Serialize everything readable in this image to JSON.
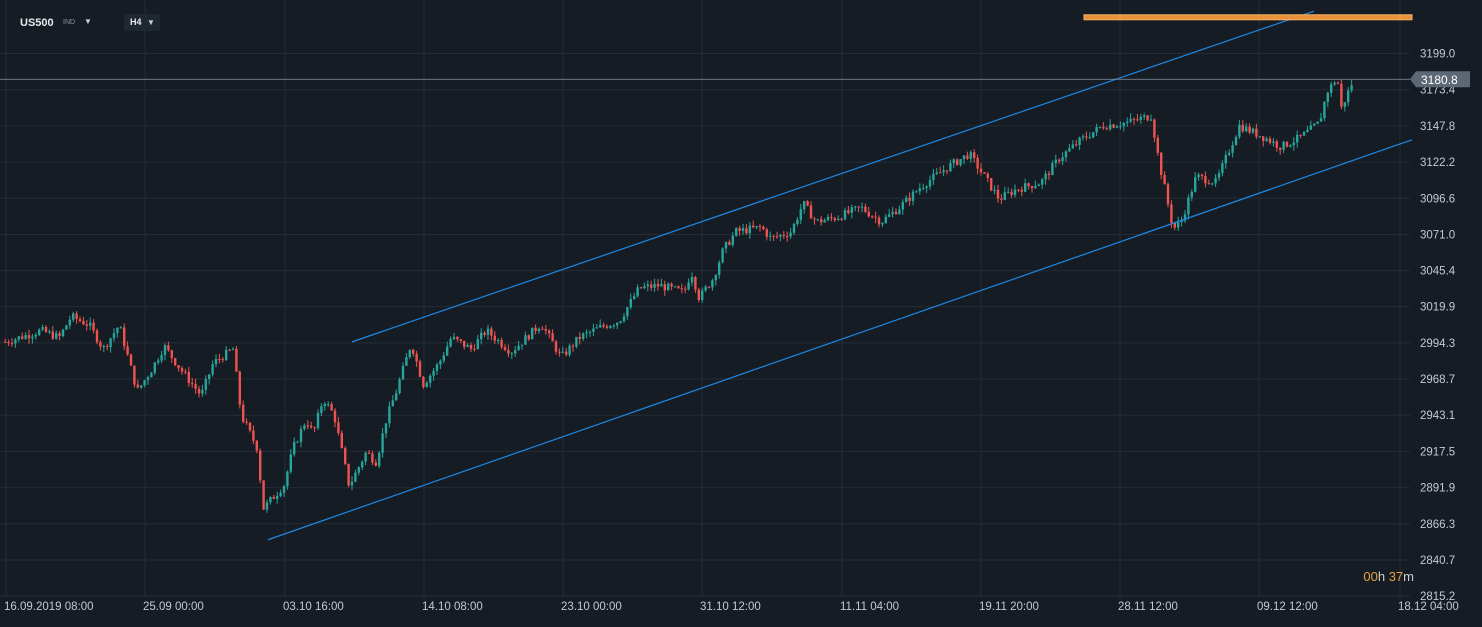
{
  "header": {
    "symbol": "US500",
    "exchange": "IND",
    "timeframe": "H4"
  },
  "timer": {
    "hours": "00",
    "h_unit": "h",
    "minutes": "37",
    "m_unit": "m"
  },
  "colors": {
    "background": "#161c24",
    "grid": "#232c37",
    "up": "#26a69a",
    "down": "#ef5350",
    "channel": "#1e88e5",
    "price_line": "#8a95a3",
    "price_badge": "#5d6875",
    "resistance": "#e8913a"
  },
  "chart_data": {
    "type": "candlestick",
    "y_axis": {
      "ticks": [
        "3199.0",
        "3173.4",
        "3147.8",
        "3122.2",
        "3096.6",
        "3071.0",
        "3045.4",
        "3019.9",
        "2994.3",
        "2968.7",
        "2943.1",
        "2917.5",
        "2891.9",
        "2866.3",
        "2840.7",
        "2815.2"
      ],
      "range": [
        2815.2,
        3229
      ]
    },
    "x_axis": {
      "ticks": [
        "16.09.2019  08:00",
        "25.09  00:00",
        "03.10  16:00",
        "14.10  08:00",
        "23.10  00:00",
        "31.10  12:00",
        "11.11  04:00",
        "19.11  20:00",
        "28.11  12:00",
        "09.12  12:00",
        "18.12  04:00"
      ]
    },
    "current_price": "3180.8",
    "price_path": [
      [
        0,
        2994
      ],
      [
        40,
        3003
      ],
      [
        58,
        2998
      ],
      [
        70,
        3013
      ],
      [
        88,
        3007
      ],
      [
        102,
        2990
      ],
      [
        118,
        3007
      ],
      [
        136,
        2960
      ],
      [
        150,
        2975
      ],
      [
        163,
        2992
      ],
      [
        180,
        2975
      ],
      [
        200,
        2957
      ],
      [
        212,
        2980
      ],
      [
        232,
        2990
      ],
      [
        240,
        2943
      ],
      [
        256,
        2920
      ],
      [
        262,
        2877
      ],
      [
        283,
        2894
      ],
      [
        292,
        2920
      ],
      [
        305,
        2940
      ],
      [
        312,
        2930
      ],
      [
        322,
        2955
      ],
      [
        333,
        2943
      ],
      [
        348,
        2893
      ],
      [
        365,
        2917
      ],
      [
        375,
        2910
      ],
      [
        385,
        2940
      ],
      [
        395,
        2960
      ],
      [
        410,
        2994
      ],
      [
        422,
        2965
      ],
      [
        438,
        2980
      ],
      [
        450,
        2998
      ],
      [
        470,
        2990
      ],
      [
        485,
        3003
      ],
      [
        510,
        2988
      ],
      [
        540,
        3008
      ],
      [
        560,
        2984
      ],
      [
        578,
        2998
      ],
      [
        598,
        3005
      ],
      [
        618,
        3010
      ],
      [
        638,
        3033
      ],
      [
        658,
        3035
      ],
      [
        683,
        3030
      ],
      [
        690,
        3045
      ],
      [
        698,
        3026
      ],
      [
        712,
        3040
      ],
      [
        722,
        3060
      ],
      [
        735,
        3073
      ],
      [
        760,
        3076
      ],
      [
        770,
        3068
      ],
      [
        790,
        3073
      ],
      [
        802,
        3093
      ],
      [
        815,
        3080
      ],
      [
        835,
        3083
      ],
      [
        860,
        3090
      ],
      [
        880,
        3080
      ],
      [
        898,
        3090
      ],
      [
        920,
        3105
      ],
      [
        945,
        3118
      ],
      [
        968,
        3128
      ],
      [
        985,
        3110
      ],
      [
        998,
        3096
      ],
      [
        1015,
        3103
      ],
      [
        1040,
        3108
      ],
      [
        1058,
        3125
      ],
      [
        1080,
        3138
      ],
      [
        1102,
        3148
      ],
      [
        1125,
        3150
      ],
      [
        1150,
        3155
      ],
      [
        1158,
        3122
      ],
      [
        1172,
        3075
      ],
      [
        1180,
        3080
      ],
      [
        1195,
        3112
      ],
      [
        1215,
        3108
      ],
      [
        1238,
        3148
      ],
      [
        1262,
        3140
      ],
      [
        1280,
        3133
      ],
      [
        1300,
        3140
      ],
      [
        1318,
        3150
      ],
      [
        1326,
        3172
      ],
      [
        1336,
        3182
      ],
      [
        1340,
        3160
      ],
      [
        1352,
        3180
      ]
    ],
    "annotations": [
      {
        "type": "channel_upper",
        "from": [
          352,
          2995
        ],
        "to": [
          1314,
          3229
        ]
      },
      {
        "type": "channel_lower",
        "from": [
          268,
          2855
        ],
        "to": [
          1412,
          3138
        ]
      },
      {
        "type": "resistance_zone",
        "from_x": 1084,
        "to_x": 1412,
        "y": 3225
      }
    ]
  }
}
